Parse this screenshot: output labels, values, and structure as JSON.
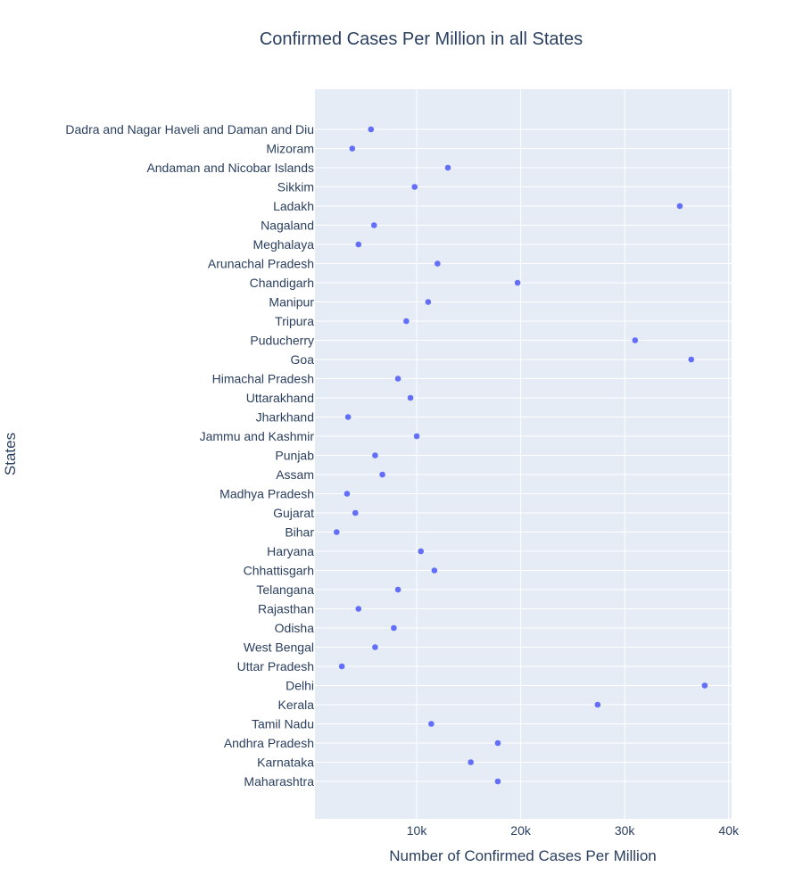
{
  "chart_data": {
    "type": "scatter",
    "title": "Confirmed Cases Per Million in all States",
    "xlabel": "Number of Confirmed Cases Per Million",
    "ylabel": "States",
    "xlim": [
      0,
      40000
    ],
    "x_ticks": [
      10000,
      20000,
      30000,
      40000
    ],
    "x_tick_labels": [
      "10k",
      "20k",
      "30k",
      "40k"
    ],
    "grid": true,
    "marker_color": "#636efa",
    "background_color": "#e5ecf6",
    "points": [
      {
        "state": "Dadra and Nagar Haveli and Daman and Diu",
        "value": 5600
      },
      {
        "state": "Mizoram",
        "value": 3800
      },
      {
        "state": "Andaman and Nicobar Islands",
        "value": 13000
      },
      {
        "state": "Sikkim",
        "value": 9800
      },
      {
        "state": "Ladakh",
        "value": 35300
      },
      {
        "state": "Nagaland",
        "value": 5900
      },
      {
        "state": "Meghalaya",
        "value": 4400
      },
      {
        "state": "Arunachal Pradesh",
        "value": 12000
      },
      {
        "state": "Chandigarh",
        "value": 19700
      },
      {
        "state": "Manipur",
        "value": 11100
      },
      {
        "state": "Tripura",
        "value": 9000
      },
      {
        "state": "Puducherry",
        "value": 31000
      },
      {
        "state": "Goa",
        "value": 36400
      },
      {
        "state": "Himachal Pradesh",
        "value": 8200
      },
      {
        "state": "Uttarakhand",
        "value": 9400
      },
      {
        "state": "Jharkhand",
        "value": 3400
      },
      {
        "state": "Jammu and Kashmir",
        "value": 10000
      },
      {
        "state": "Punjab",
        "value": 6000
      },
      {
        "state": "Assam",
        "value": 6700
      },
      {
        "state": "Madhya Pradesh",
        "value": 3300
      },
      {
        "state": "Gujarat",
        "value": 4100
      },
      {
        "state": "Bihar",
        "value": 2300
      },
      {
        "state": "Haryana",
        "value": 10400
      },
      {
        "state": "Chhattisgarh",
        "value": 11700
      },
      {
        "state": "Telangana",
        "value": 8200
      },
      {
        "state": "Rajasthan",
        "value": 4400
      },
      {
        "state": "Odisha",
        "value": 7800
      },
      {
        "state": "West Bengal",
        "value": 6000
      },
      {
        "state": "Uttar Pradesh",
        "value": 2800
      },
      {
        "state": "Delhi",
        "value": 37700
      },
      {
        "state": "Kerala",
        "value": 27400
      },
      {
        "state": "Tamil Nadu",
        "value": 11400
      },
      {
        "state": "Andhra Pradesh",
        "value": 17800
      },
      {
        "state": "Karnataka",
        "value": 15200
      },
      {
        "state": "Maharashtra",
        "value": 17800
      }
    ]
  }
}
